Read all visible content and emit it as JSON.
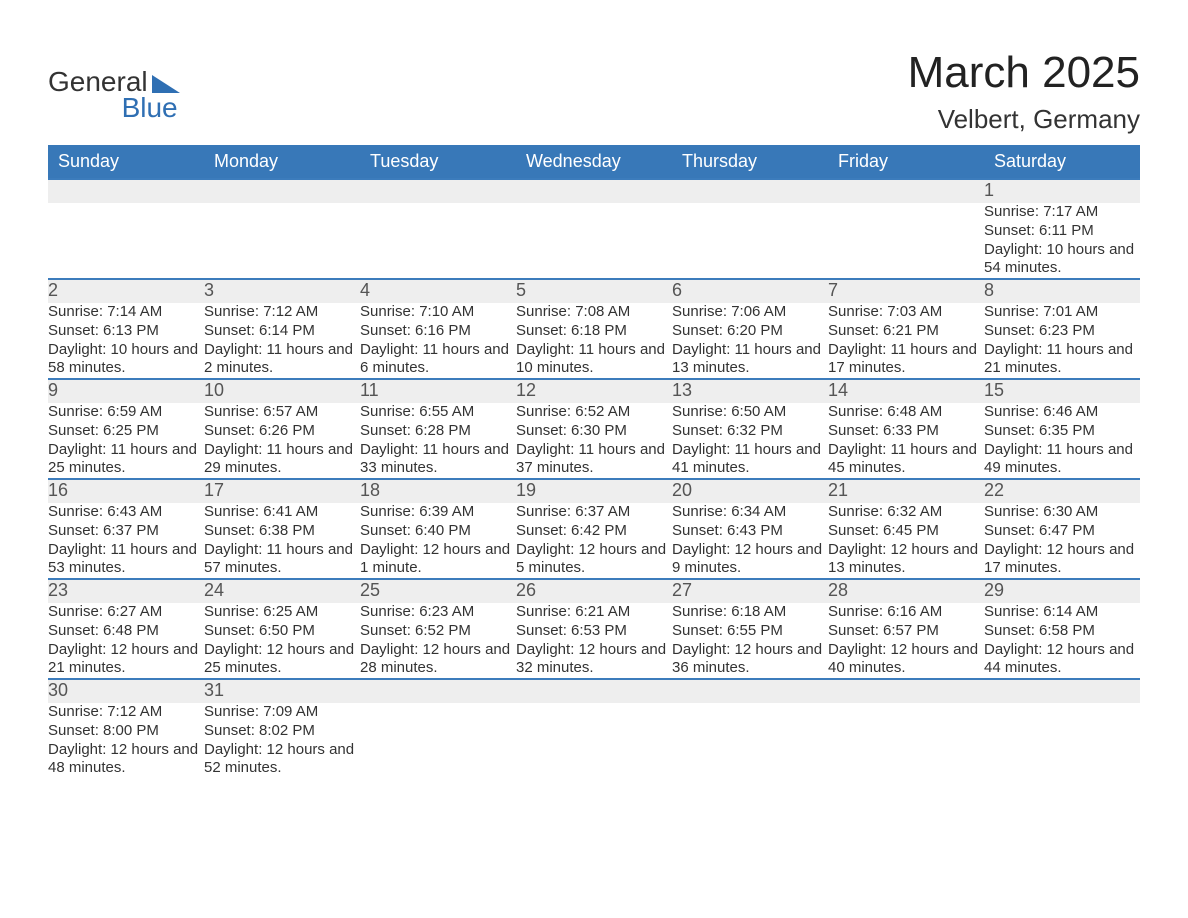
{
  "brand": {
    "line1": "General",
    "line2": "Blue"
  },
  "title": "March 2025",
  "location": "Velbert, Germany",
  "colors": {
    "header_bg": "#3878b8",
    "header_text": "#ffffff",
    "row_divider": "#3c7cbc",
    "daynum_bg": "#eeeeee",
    "text": "#333333",
    "background": "#ffffff"
  },
  "weekdays": [
    "Sunday",
    "Monday",
    "Tuesday",
    "Wednesday",
    "Thursday",
    "Friday",
    "Saturday"
  ],
  "weeks": [
    [
      null,
      null,
      null,
      null,
      null,
      null,
      {
        "n": "1",
        "sunrise": "Sunrise: 7:17 AM",
        "sunset": "Sunset: 6:11 PM",
        "daylight": "Daylight: 10 hours and 54 minutes."
      }
    ],
    [
      {
        "n": "2",
        "sunrise": "Sunrise: 7:14 AM",
        "sunset": "Sunset: 6:13 PM",
        "daylight": "Daylight: 10 hours and 58 minutes."
      },
      {
        "n": "3",
        "sunrise": "Sunrise: 7:12 AM",
        "sunset": "Sunset: 6:14 PM",
        "daylight": "Daylight: 11 hours and 2 minutes."
      },
      {
        "n": "4",
        "sunrise": "Sunrise: 7:10 AM",
        "sunset": "Sunset: 6:16 PM",
        "daylight": "Daylight: 11 hours and 6 minutes."
      },
      {
        "n": "5",
        "sunrise": "Sunrise: 7:08 AM",
        "sunset": "Sunset: 6:18 PM",
        "daylight": "Daylight: 11 hours and 10 minutes."
      },
      {
        "n": "6",
        "sunrise": "Sunrise: 7:06 AM",
        "sunset": "Sunset: 6:20 PM",
        "daylight": "Daylight: 11 hours and 13 minutes."
      },
      {
        "n": "7",
        "sunrise": "Sunrise: 7:03 AM",
        "sunset": "Sunset: 6:21 PM",
        "daylight": "Daylight: 11 hours and 17 minutes."
      },
      {
        "n": "8",
        "sunrise": "Sunrise: 7:01 AM",
        "sunset": "Sunset: 6:23 PM",
        "daylight": "Daylight: 11 hours and 21 minutes."
      }
    ],
    [
      {
        "n": "9",
        "sunrise": "Sunrise: 6:59 AM",
        "sunset": "Sunset: 6:25 PM",
        "daylight": "Daylight: 11 hours and 25 minutes."
      },
      {
        "n": "10",
        "sunrise": "Sunrise: 6:57 AM",
        "sunset": "Sunset: 6:26 PM",
        "daylight": "Daylight: 11 hours and 29 minutes."
      },
      {
        "n": "11",
        "sunrise": "Sunrise: 6:55 AM",
        "sunset": "Sunset: 6:28 PM",
        "daylight": "Daylight: 11 hours and 33 minutes."
      },
      {
        "n": "12",
        "sunrise": "Sunrise: 6:52 AM",
        "sunset": "Sunset: 6:30 PM",
        "daylight": "Daylight: 11 hours and 37 minutes."
      },
      {
        "n": "13",
        "sunrise": "Sunrise: 6:50 AM",
        "sunset": "Sunset: 6:32 PM",
        "daylight": "Daylight: 11 hours and 41 minutes."
      },
      {
        "n": "14",
        "sunrise": "Sunrise: 6:48 AM",
        "sunset": "Sunset: 6:33 PM",
        "daylight": "Daylight: 11 hours and 45 minutes."
      },
      {
        "n": "15",
        "sunrise": "Sunrise: 6:46 AM",
        "sunset": "Sunset: 6:35 PM",
        "daylight": "Daylight: 11 hours and 49 minutes."
      }
    ],
    [
      {
        "n": "16",
        "sunrise": "Sunrise: 6:43 AM",
        "sunset": "Sunset: 6:37 PM",
        "daylight": "Daylight: 11 hours and 53 minutes."
      },
      {
        "n": "17",
        "sunrise": "Sunrise: 6:41 AM",
        "sunset": "Sunset: 6:38 PM",
        "daylight": "Daylight: 11 hours and 57 minutes."
      },
      {
        "n": "18",
        "sunrise": "Sunrise: 6:39 AM",
        "sunset": "Sunset: 6:40 PM",
        "daylight": "Daylight: 12 hours and 1 minute."
      },
      {
        "n": "19",
        "sunrise": "Sunrise: 6:37 AM",
        "sunset": "Sunset: 6:42 PM",
        "daylight": "Daylight: 12 hours and 5 minutes."
      },
      {
        "n": "20",
        "sunrise": "Sunrise: 6:34 AM",
        "sunset": "Sunset: 6:43 PM",
        "daylight": "Daylight: 12 hours and 9 minutes."
      },
      {
        "n": "21",
        "sunrise": "Sunrise: 6:32 AM",
        "sunset": "Sunset: 6:45 PM",
        "daylight": "Daylight: 12 hours and 13 minutes."
      },
      {
        "n": "22",
        "sunrise": "Sunrise: 6:30 AM",
        "sunset": "Sunset: 6:47 PM",
        "daylight": "Daylight: 12 hours and 17 minutes."
      }
    ],
    [
      {
        "n": "23",
        "sunrise": "Sunrise: 6:27 AM",
        "sunset": "Sunset: 6:48 PM",
        "daylight": "Daylight: 12 hours and 21 minutes."
      },
      {
        "n": "24",
        "sunrise": "Sunrise: 6:25 AM",
        "sunset": "Sunset: 6:50 PM",
        "daylight": "Daylight: 12 hours and 25 minutes."
      },
      {
        "n": "25",
        "sunrise": "Sunrise: 6:23 AM",
        "sunset": "Sunset: 6:52 PM",
        "daylight": "Daylight: 12 hours and 28 minutes."
      },
      {
        "n": "26",
        "sunrise": "Sunrise: 6:21 AM",
        "sunset": "Sunset: 6:53 PM",
        "daylight": "Daylight: 12 hours and 32 minutes."
      },
      {
        "n": "27",
        "sunrise": "Sunrise: 6:18 AM",
        "sunset": "Sunset: 6:55 PM",
        "daylight": "Daylight: 12 hours and 36 minutes."
      },
      {
        "n": "28",
        "sunrise": "Sunrise: 6:16 AM",
        "sunset": "Sunset: 6:57 PM",
        "daylight": "Daylight: 12 hours and 40 minutes."
      },
      {
        "n": "29",
        "sunrise": "Sunrise: 6:14 AM",
        "sunset": "Sunset: 6:58 PM",
        "daylight": "Daylight: 12 hours and 44 minutes."
      }
    ],
    [
      {
        "n": "30",
        "sunrise": "Sunrise: 7:12 AM",
        "sunset": "Sunset: 8:00 PM",
        "daylight": "Daylight: 12 hours and 48 minutes."
      },
      {
        "n": "31",
        "sunrise": "Sunrise: 7:09 AM",
        "sunset": "Sunset: 8:02 PM",
        "daylight": "Daylight: 12 hours and 52 minutes."
      },
      null,
      null,
      null,
      null,
      null
    ]
  ]
}
